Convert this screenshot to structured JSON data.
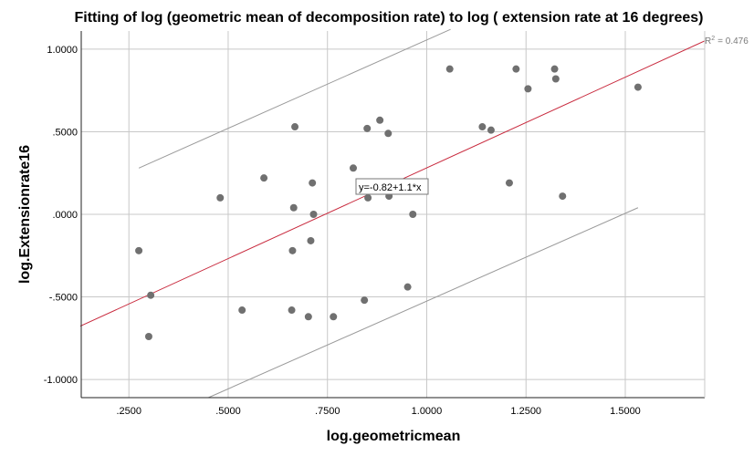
{
  "chart_data": {
    "type": "scatter",
    "title": "Fitting of log (geometric mean of decomposition rate) to log ( extension rate at 16 degrees)",
    "xlabel": "log.geometricmean",
    "ylabel": "log.Extensionrate16",
    "xlim": [
      0.13,
      1.7
    ],
    "ylim": [
      -1.11,
      1.11
    ],
    "x_ticks": [
      0.25,
      0.5,
      0.75,
      1.0,
      1.25,
      1.5
    ],
    "x_tick_labels": [
      ".2500",
      ".5000",
      ".7500",
      "1.0000",
      "1.2500",
      "1.5000"
    ],
    "y_ticks": [
      1.0,
      0.5,
      0.0,
      -0.5,
      -1.0
    ],
    "y_tick_labels": [
      "1.0000",
      ".5000",
      ".0000",
      "-.5000",
      "-1.0000"
    ],
    "grid": true,
    "points": [
      {
        "x": 0.275,
        "y": -0.22
      },
      {
        "x": 0.3,
        "y": -0.74
      },
      {
        "x": 0.305,
        "y": -0.49
      },
      {
        "x": 0.48,
        "y": 0.1
      },
      {
        "x": 0.535,
        "y": -0.58
      },
      {
        "x": 0.59,
        "y": 0.22
      },
      {
        "x": 0.66,
        "y": -0.58
      },
      {
        "x": 0.662,
        "y": -0.22
      },
      {
        "x": 0.665,
        "y": 0.04
      },
      {
        "x": 0.668,
        "y": 0.53
      },
      {
        "x": 0.702,
        "y": -0.62
      },
      {
        "x": 0.708,
        "y": -0.16
      },
      {
        "x": 0.712,
        "y": 0.19
      },
      {
        "x": 0.715,
        "y": 0.0
      },
      {
        "x": 0.765,
        "y": -0.62
      },
      {
        "x": 0.815,
        "y": 0.28
      },
      {
        "x": 0.843,
        "y": -0.52
      },
      {
        "x": 0.85,
        "y": 0.52
      },
      {
        "x": 0.852,
        "y": 0.1
      },
      {
        "x": 0.882,
        "y": 0.57
      },
      {
        "x": 0.903,
        "y": 0.49
      },
      {
        "x": 0.905,
        "y": 0.11
      },
      {
        "x": 0.952,
        "y": -0.44
      },
      {
        "x": 0.965,
        "y": 0.0
      },
      {
        "x": 1.058,
        "y": 0.88
      },
      {
        "x": 1.14,
        "y": 0.53
      },
      {
        "x": 1.162,
        "y": 0.51
      },
      {
        "x": 1.208,
        "y": 0.19
      },
      {
        "x": 1.225,
        "y": 0.88
      },
      {
        "x": 1.255,
        "y": 0.76
      },
      {
        "x": 1.322,
        "y": 0.88
      },
      {
        "x": 1.325,
        "y": 0.82
      },
      {
        "x": 1.342,
        "y": 0.11
      },
      {
        "x": 1.532,
        "y": 0.77
      }
    ],
    "fit_line": {
      "intercept": -0.82,
      "slope": 1.1,
      "x_range": [
        0.13,
        1.7
      ],
      "color": "#c8283c"
    },
    "confidence_upper": {
      "x": [
        0.275,
        1.06
      ],
      "y": [
        0.28,
        1.12
      ]
    },
    "confidence_lower": {
      "x": [
        0.45,
        1.532
      ],
      "y": [
        -1.11,
        0.04
      ]
    },
    "equation_label": "y=-0.82+1.1*x",
    "r2_label": "R",
    "r2_superscript": "2",
    "r2_value": "= 0.476"
  },
  "colors": {
    "point": "#707070",
    "fit_line": "#c8283c",
    "ci_line": "#9a9a9a",
    "grid": "#c8c8c8",
    "axis": "#222222"
  }
}
